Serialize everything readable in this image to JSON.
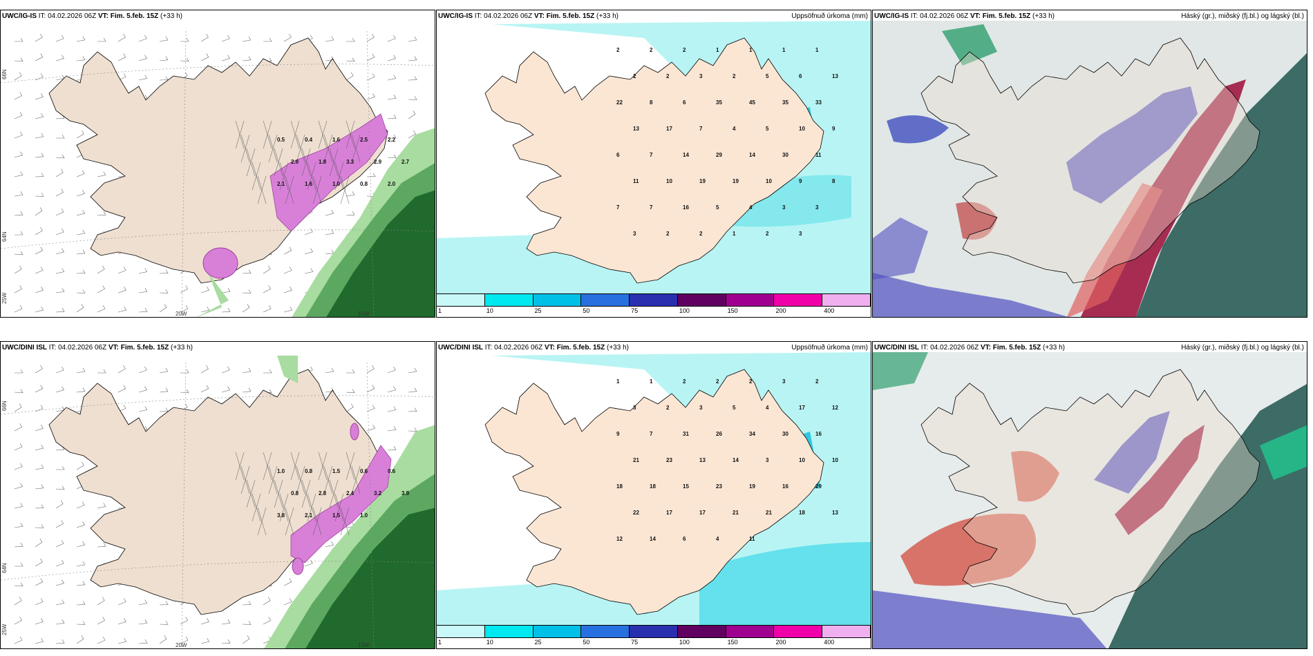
{
  "panels": {
    "top_left": {
      "model": "UWC/IG-IS",
      "it_label": "IT:",
      "it_value": "04.02.2026 06Z",
      "vt_label": "VT:",
      "vt_value": "Fim. 5.feb. 15Z",
      "lead": "(+33 h)",
      "right_title": ""
    },
    "top_mid": {
      "model": "UWC/IG-IS",
      "it_label": "IT:",
      "it_value": "04.02.2026 06Z",
      "vt_label": "VT:",
      "vt_value": "Fim. 5.feb. 15Z",
      "lead": "(+33 h)",
      "right_title": "Uppsöfnuð úrkoma (mm)"
    },
    "top_right": {
      "model": "UWC/IG-IS",
      "it_label": "IT:",
      "it_value": "04.02.2026 06Z",
      "vt_label": "VT:",
      "vt_value": "Fim. 5.feb. 15Z",
      "lead": "(+33 h)",
      "right_title": "Háský (gr.), miðský (fj.bl.) og lágský (bl.)"
    },
    "bottom_left": {
      "model": "UWC/DINI ISL",
      "it_label": "IT:",
      "it_value": "04.02.2026 06Z",
      "vt_label": "VT:",
      "vt_value": "Fim. 5.feb. 15Z",
      "lead": "(+33 h)",
      "right_title": ""
    },
    "bottom_mid": {
      "model": "UWC/DINI ISL",
      "it_label": "IT:",
      "it_value": "04.02.2026 06Z",
      "vt_label": "VT:",
      "vt_value": "Fim. 5.feb. 15Z",
      "lead": "(+33 h)",
      "right_title": "Uppsöfnuð úrkoma (mm)"
    },
    "bottom_right": {
      "model": "UWC/DINI ISL",
      "it_label": "IT:",
      "it_value": "04.02.2026 06Z",
      "vt_label": "VT:",
      "vt_value": "Fim. 5.feb. 15Z",
      "lead": "(+33 h)",
      "right_title": "Háský (gr.), miðský (fj.bl.) og lágský (bl.)"
    }
  },
  "grid_labels": {
    "lat_66": "66N",
    "lat_64": "64N",
    "lat_63": "63N",
    "lon_20": "20W",
    "lon_15": "15W",
    "lon_25": "25W"
  },
  "colorbar": {
    "levels": [
      "1",
      "10",
      "25",
      "50",
      "75",
      "100",
      "150",
      "200",
      "400"
    ],
    "colors": [
      "#c8f8f8",
      "#00e8f0",
      "#00c0e8",
      "#2870e0",
      "#2830b0",
      "#600060",
      "#a00090",
      "#f000a8",
      "#f0b0f0"
    ]
  },
  "precip_top_values": [
    "2",
    "2",
    "2",
    "1",
    "1",
    "1",
    "1",
    "2",
    "2",
    "3",
    "2",
    "5",
    "6",
    "13",
    "22",
    "8",
    "6",
    "35",
    "45",
    "35",
    "33",
    "13",
    "17",
    "7",
    "4",
    "5",
    "10",
    "9",
    "6",
    "7",
    "14",
    "29",
    "14",
    "30",
    "11",
    "11",
    "10",
    "19",
    "19",
    "10",
    "9",
    "8",
    "7",
    "7",
    "16",
    "5",
    "4",
    "3",
    "3",
    "3",
    "2",
    "2",
    "1",
    "2",
    "3"
  ],
  "precip_bottom_values": [
    "1",
    "1",
    "2",
    "2",
    "2",
    "3",
    "2",
    "3",
    "2",
    "3",
    "5",
    "4",
    "17",
    "12",
    "9",
    "7",
    "31",
    "26",
    "34",
    "30",
    "16",
    "21",
    "23",
    "13",
    "14",
    "3",
    "10",
    "10",
    "18",
    "18",
    "15",
    "23",
    "19",
    "16",
    "29",
    "22",
    "17",
    "17",
    "21",
    "21",
    "18",
    "13",
    "12",
    "14",
    "6",
    "4",
    "11"
  ],
  "snow_top_values": [
    "0.5",
    "0.4",
    "1.6",
    "2.5",
    "2.2",
    "2.0",
    "1.8",
    "3.3",
    "2.9",
    "2.7",
    "2.1",
    "1.6",
    "1.0",
    "0.8",
    "2.0"
  ],
  "snow_bottom_values": [
    "1.0",
    "0.8",
    "1.5",
    "0.6",
    "0.6",
    "0.8",
    "2.8",
    "2.4",
    "3.2",
    "3.9",
    "3.8",
    "2.1",
    "1.5",
    "1.0"
  ]
}
